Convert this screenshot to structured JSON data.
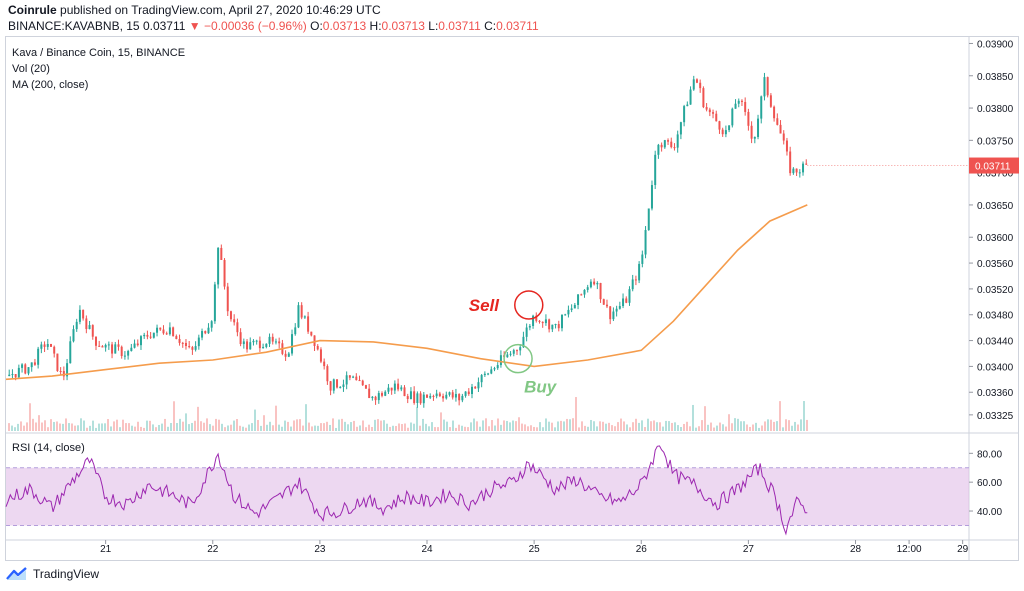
{
  "header": {
    "publisher": "Coinrule",
    "published_text": "published on TradingView.com, April 27, 2020 10:46:29 UTC",
    "symbol": "BINANCE:KAVABNB, 15",
    "last": "0.03711",
    "change": "−0.00036 (−0.96%)",
    "o_label": "O:",
    "o_value": "0.03713",
    "h_label": "H:",
    "h_value": "0.03713",
    "l_label": "L:",
    "l_value": "0.03711",
    "c_label": "C:",
    "c_value": "0.03711"
  },
  "legend": {
    "title": "Kava / Binance Coin, 15, BINANCE",
    "vol": "Vol (20)",
    "ma": "MA (200, close)",
    "rsi": "RSI (14, close)"
  },
  "annotations": {
    "sell": "Sell",
    "buy": "Buy"
  },
  "footer": {
    "brand": "TradingView"
  },
  "colors": {
    "up": "#26a69a",
    "down": "#ef5350",
    "ma": "#f59c4c",
    "rsi_line": "#9c27b0",
    "rsi_band": "#e1bee7",
    "price_tag": "#ef5350",
    "sell": "#e52620",
    "buy": "#81c784"
  },
  "chart_data": {
    "type": "candlestick",
    "x_ticks": [
      {
        "label": "21",
        "x": 21
      },
      {
        "label": "22",
        "x": 22
      },
      {
        "label": "23",
        "x": 23
      },
      {
        "label": "24",
        "x": 24
      },
      {
        "label": "25",
        "x": 25
      },
      {
        "label": "26",
        "x": 26
      },
      {
        "label": "27",
        "x": 27
      },
      {
        "label": "28",
        "x": 28
      },
      {
        "label": "12:00",
        "x": 28.5
      },
      {
        "label": "29",
        "x": 29
      }
    ],
    "xlim": [
      20.07,
      29.05
    ],
    "price_axis": {
      "ylim": [
        0.033,
        0.0391
      ],
      "ticks": [
        "0.03325",
        "0.03360",
        "0.03400",
        "0.03440",
        "0.03480",
        "0.03520",
        "0.03560",
        "0.03600",
        "0.03650",
        "0.03700",
        "0.03750",
        "0.03800",
        "0.03850",
        "0.03900"
      ],
      "last_price": "0.03711"
    },
    "price_path": [
      [
        20.07,
        0.03385
      ],
      [
        20.3,
        0.034
      ],
      [
        20.45,
        0.0344
      ],
      [
        20.6,
        0.0338
      ],
      [
        20.75,
        0.0349
      ],
      [
        20.9,
        0.0344
      ],
      [
        21.0,
        0.0343
      ],
      [
        21.2,
        0.0342
      ],
      [
        21.4,
        0.0345
      ],
      [
        21.6,
        0.0346
      ],
      [
        21.8,
        0.0342
      ],
      [
        22.0,
        0.0348
      ],
      [
        22.05,
        0.0359
      ],
      [
        22.15,
        0.0348
      ],
      [
        22.3,
        0.0343
      ],
      [
        22.5,
        0.0344
      ],
      [
        22.7,
        0.0342
      ],
      [
        22.8,
        0.0349
      ],
      [
        22.95,
        0.0344
      ],
      [
        23.1,
        0.0337
      ],
      [
        23.3,
        0.0338
      ],
      [
        23.5,
        0.0335
      ],
      [
        23.7,
        0.0337
      ],
      [
        23.9,
        0.0335
      ],
      [
        24.1,
        0.0336
      ],
      [
        24.3,
        0.0335
      ],
      [
        24.5,
        0.0338
      ],
      [
        24.7,
        0.0341
      ],
      [
        24.85,
        0.0343
      ],
      [
        25.0,
        0.0348
      ],
      [
        25.2,
        0.0346
      ],
      [
        25.4,
        0.035
      ],
      [
        25.55,
        0.0354
      ],
      [
        25.7,
        0.0348
      ],
      [
        25.85,
        0.035
      ],
      [
        26.0,
        0.0356
      ],
      [
        26.15,
        0.0375
      ],
      [
        26.3,
        0.0374
      ],
      [
        26.5,
        0.0385
      ],
      [
        26.6,
        0.038
      ],
      [
        26.8,
        0.0376
      ],
      [
        26.9,
        0.0382
      ],
      [
        27.05,
        0.0375
      ],
      [
        27.15,
        0.0384
      ],
      [
        27.3,
        0.0376
      ],
      [
        27.4,
        0.037
      ],
      [
        27.55,
        0.03711
      ]
    ],
    "ma_path": [
      [
        20.07,
        0.0338
      ],
      [
        20.5,
        0.03385
      ],
      [
        21.0,
        0.03395
      ],
      [
        21.5,
        0.03405
      ],
      [
        22.0,
        0.0341
      ],
      [
        22.5,
        0.03422
      ],
      [
        23.0,
        0.0344
      ],
      [
        23.5,
        0.03438
      ],
      [
        24.0,
        0.03428
      ],
      [
        24.5,
        0.03412
      ],
      [
        25.0,
        0.034
      ],
      [
        25.5,
        0.0341
      ],
      [
        26.0,
        0.03425
      ],
      [
        26.3,
        0.0347
      ],
      [
        26.6,
        0.03525
      ],
      [
        26.9,
        0.0358
      ],
      [
        27.2,
        0.03625
      ],
      [
        27.55,
        0.0365
      ]
    ],
    "rsi_axis": {
      "ylim": [
        22,
        92
      ],
      "ticks": [
        "40.00",
        "60.00",
        "80.00"
      ],
      "band": [
        30,
        70
      ]
    },
    "rsi_path": [
      [
        20.07,
        48
      ],
      [
        20.3,
        55
      ],
      [
        20.5,
        42
      ],
      [
        20.7,
        62
      ],
      [
        20.85,
        75
      ],
      [
        21.0,
        50
      ],
      [
        21.2,
        45
      ],
      [
        21.4,
        58
      ],
      [
        21.6,
        52
      ],
      [
        21.8,
        44
      ],
      [
        22.05,
        80
      ],
      [
        22.2,
        50
      ],
      [
        22.4,
        38
      ],
      [
        22.6,
        48
      ],
      [
        22.8,
        60
      ],
      [
        23.0,
        38
      ],
      [
        23.2,
        40
      ],
      [
        23.4,
        48
      ],
      [
        23.6,
        42
      ],
      [
        23.8,
        50
      ],
      [
        24.0,
        46
      ],
      [
        24.2,
        52
      ],
      [
        24.4,
        45
      ],
      [
        24.6,
        55
      ],
      [
        24.8,
        60
      ],
      [
        24.95,
        73
      ],
      [
        25.2,
        55
      ],
      [
        25.4,
        62
      ],
      [
        25.6,
        50
      ],
      [
        25.8,
        46
      ],
      [
        26.0,
        58
      ],
      [
        26.18,
        88
      ],
      [
        26.3,
        65
      ],
      [
        26.5,
        58
      ],
      [
        26.7,
        45
      ],
      [
        26.9,
        55
      ],
      [
        27.1,
        70
      ],
      [
        27.25,
        50
      ],
      [
        27.35,
        28
      ],
      [
        27.45,
        45
      ],
      [
        27.55,
        42
      ]
    ],
    "volume_ylim": [
      0,
      100
    ],
    "series": [
      {
        "name": "MA (200, close)"
      },
      {
        "name": "RSI (14, close)"
      }
    ]
  }
}
